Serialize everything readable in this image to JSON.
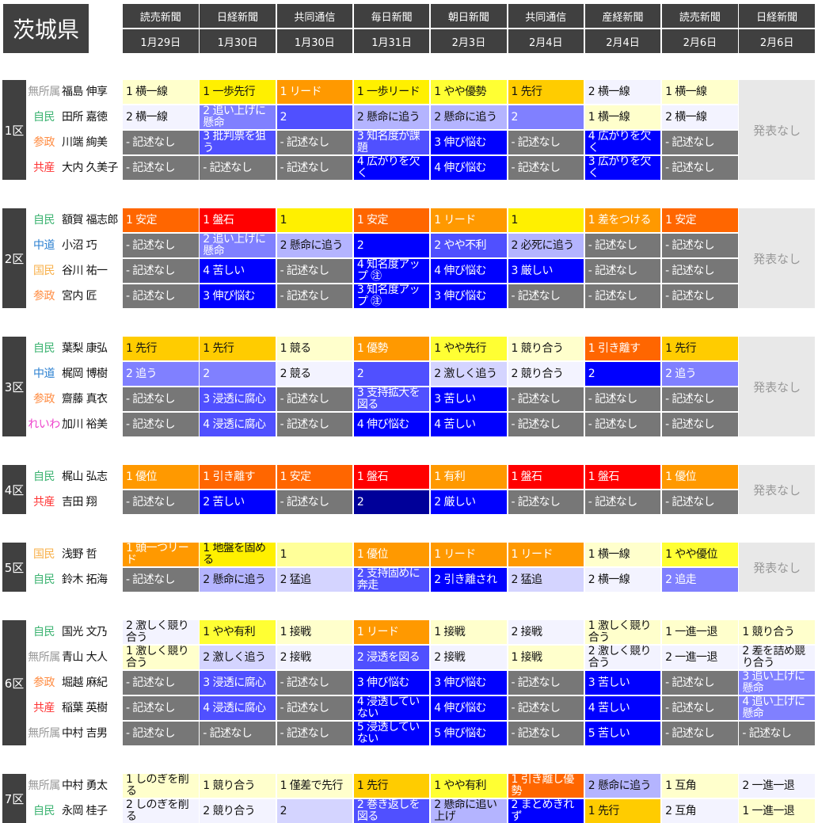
{
  "prefecture": "茨城県",
  "columns": [
    {
      "outlet": "読売新聞",
      "date": "1月29日"
    },
    {
      "outlet": "日経新聞",
      "date": "1月30日"
    },
    {
      "outlet": "共同通信",
      "date": "1月30日"
    },
    {
      "outlet": "毎日新聞",
      "date": "1月31日"
    },
    {
      "outlet": "朝日新聞",
      "date": "2月3日"
    },
    {
      "outlet": "共同通信",
      "date": "2月4日"
    },
    {
      "outlet": "産経新聞",
      "date": "2月4日"
    },
    {
      "outlet": "読売新聞",
      "date": "2月6日"
    },
    {
      "outlet": "日経新聞",
      "date": "2月6日"
    }
  ],
  "not_announced_label": "発表なし",
  "party_colors": {
    "無所属": "#999999",
    "自民": "#3cb371",
    "参政": "#ff8c42",
    "共産": "#ff3333",
    "中道": "#2a7fd0",
    "国民": "#f8b04a",
    "れいわ": "#ee44cc"
  },
  "palette": {
    "Y1": "#ffffcc",
    "Y2": "#ffff99",
    "Y3": "#ffff33",
    "Y4": "#fff000",
    "G": "#ffcc00",
    "O": "#ff9900",
    "OR": "#ff6600",
    "R": "#ff0000",
    "B0": "#f3f3ff",
    "B1": "#d4d4ff",
    "B2": "#b4b4ff",
    "B3": "#8080ff",
    "B4": "#5050ff",
    "B5": "#0000ff",
    "B6": "#000099",
    "N": "#777777"
  },
  "districts": [
    {
      "label": "1区",
      "not_announced": true,
      "rows": [
        {
          "party": "無所属",
          "name": "福島 伸享",
          "cells": [
            [
              "1 横一線",
              "Y1"
            ],
            [
              "1 一歩先行",
              "Y4"
            ],
            [
              "1 リード",
              "O"
            ],
            [
              "1 一歩リード",
              "Y4"
            ],
            [
              "1 やや優勢",
              "Y3"
            ],
            [
              "1 先行",
              "G"
            ],
            [
              "2 横一線",
              "B0"
            ],
            [
              "1 横一線",
              "Y1"
            ]
          ]
        },
        {
          "party": "自民",
          "name": "田所 嘉徳",
          "cells": [
            [
              "2 横一線",
              "B0"
            ],
            [
              "2 追い上げに懸命",
              "B3"
            ],
            [
              "2",
              "B4"
            ],
            [
              "2 懸命に追う",
              "B2"
            ],
            [
              "2 懸命に追う",
              "B2"
            ],
            [
              "2",
              "B3"
            ],
            [
              "1 横一線",
              "Y1"
            ],
            [
              "2 横一線",
              "B0"
            ]
          ]
        },
        {
          "party": "参政",
          "name": "川端 絢美",
          "cells": [
            [
              "- 記述なし",
              "N"
            ],
            [
              "3 批判票を狙う",
              "B4"
            ],
            [
              "- 記述なし",
              "N"
            ],
            [
              "3 知名度が課題",
              "B4"
            ],
            [
              "3 伸び悩む",
              "B5"
            ],
            [
              "- 記述なし",
              "N"
            ],
            [
              "4 広がりを欠く",
              "B5"
            ],
            [
              "- 記述なし",
              "N"
            ]
          ]
        },
        {
          "party": "共産",
          "name": "大内 久美子",
          "cells": [
            [
              "- 記述なし",
              "N"
            ],
            [
              "- 記述なし",
              "N"
            ],
            [
              "- 記述なし",
              "N"
            ],
            [
              "4 広がりを欠く",
              "B5"
            ],
            [
              "4 伸び悩む",
              "B5"
            ],
            [
              "- 記述なし",
              "N"
            ],
            [
              "3 広がりを欠く",
              "B5"
            ],
            [
              "- 記述なし",
              "N"
            ]
          ]
        }
      ]
    },
    {
      "label": "2区",
      "not_announced": true,
      "rows": [
        {
          "party": "自民",
          "name": "額賀 福志郎",
          "cells": [
            [
              "1 安定",
              "OR"
            ],
            [
              "1 盤石",
              "R"
            ],
            [
              "1",
              "Y4"
            ],
            [
              "1 安定",
              "OR"
            ],
            [
              "1 リード",
              "O"
            ],
            [
              "1",
              "Y4"
            ],
            [
              "1 差をつける",
              "O"
            ],
            [
              "1 安定",
              "OR"
            ]
          ]
        },
        {
          "party": "中道",
          "name": "小沼 巧",
          "cells": [
            [
              "- 記述なし",
              "N"
            ],
            [
              "2 追い上げに懸命",
              "B3"
            ],
            [
              "2 懸命に追う",
              "B2"
            ],
            [
              "2",
              "B5"
            ],
            [
              "2 やや不利",
              "B4"
            ],
            [
              "2 必死に追う",
              "B2"
            ],
            [
              "- 記述なし",
              "N"
            ],
            [
              "- 記述なし",
              "N"
            ]
          ]
        },
        {
          "party": "国民",
          "name": "谷川 祐一",
          "cells": [
            [
              "- 記述なし",
              "N"
            ],
            [
              "4 苦しい",
              "B5"
            ],
            [
              "- 記述なし",
              "N"
            ],
            [
              "4 知名度アップ ㊟",
              "B5"
            ],
            [
              "4 伸び悩む",
              "B5"
            ],
            [
              "3 厳しい",
              "B5"
            ],
            [
              "- 記述なし",
              "N"
            ],
            [
              "- 記述なし",
              "N"
            ]
          ]
        },
        {
          "party": "参政",
          "name": "宮内 匠",
          "cells": [
            [
              "- 記述なし",
              "N"
            ],
            [
              "3 伸び悩む",
              "B5"
            ],
            [
              "- 記述なし",
              "N"
            ],
            [
              "3 知名度アップ ㊟",
              "B5"
            ],
            [
              "3 伸び悩む",
              "B5"
            ],
            [
              "- 記述なし",
              "N"
            ],
            [
              "- 記述なし",
              "N"
            ],
            [
              "- 記述なし",
              "N"
            ]
          ]
        }
      ]
    },
    {
      "label": "3区",
      "not_announced": true,
      "rows": [
        {
          "party": "自民",
          "name": "葉梨 康弘",
          "cells": [
            [
              "1 先行",
              "G"
            ],
            [
              "1 先行",
              "G"
            ],
            [
              "1 競る",
              "Y1"
            ],
            [
              "1 優勢",
              "O"
            ],
            [
              "1 やや先行",
              "Y3"
            ],
            [
              "1 競り合う",
              "Y1"
            ],
            [
              "1 引き離す",
              "OR"
            ],
            [
              "1 先行",
              "G"
            ]
          ]
        },
        {
          "party": "中道",
          "name": "梶岡 博樹",
          "cells": [
            [
              "2 追う",
              "B3"
            ],
            [
              "2",
              "B3"
            ],
            [
              "2 競る",
              "B0"
            ],
            [
              "2",
              "B4"
            ],
            [
              "2 激しく追う",
              "B1"
            ],
            [
              "2 競り合う",
              "B0"
            ],
            [
              "2",
              "B5"
            ],
            [
              "2 追う",
              "B3"
            ]
          ]
        },
        {
          "party": "参政",
          "name": "齋藤 真衣",
          "cells": [
            [
              "- 記述なし",
              "N"
            ],
            [
              "3 浸透に腐心",
              "B4"
            ],
            [
              "- 記述なし",
              "N"
            ],
            [
              "3 支持拡大を図る",
              "B4"
            ],
            [
              "3 苦しい",
              "B5"
            ],
            [
              "- 記述なし",
              "N"
            ],
            [
              "- 記述なし",
              "N"
            ],
            [
              "- 記述なし",
              "N"
            ]
          ]
        },
        {
          "party": "れいわ",
          "name": "加川 裕美",
          "cells": [
            [
              "- 記述なし",
              "N"
            ],
            [
              "4 浸透に腐心",
              "B4"
            ],
            [
              "- 記述なし",
              "N"
            ],
            [
              "4 伸び悩む",
              "B5"
            ],
            [
              "4 苦しい",
              "B5"
            ],
            [
              "- 記述なし",
              "N"
            ],
            [
              "- 記述なし",
              "N"
            ],
            [
              "- 記述なし",
              "N"
            ]
          ]
        }
      ]
    },
    {
      "label": "4区",
      "not_announced": true,
      "rows": [
        {
          "party": "自民",
          "name": "梶山 弘志",
          "cells": [
            [
              "1 優位",
              "O"
            ],
            [
              "1 引き離す",
              "OR"
            ],
            [
              "1 安定",
              "OR"
            ],
            [
              "1 盤石",
              "R"
            ],
            [
              "1 有利",
              "O"
            ],
            [
              "1 盤石",
              "R"
            ],
            [
              "1 盤石",
              "R"
            ],
            [
              "1 優位",
              "O"
            ]
          ]
        },
        {
          "party": "共産",
          "name": "吉田 翔",
          "cells": [
            [
              "- 記述なし",
              "N"
            ],
            [
              "2 苦しい",
              "B5"
            ],
            [
              "- 記述なし",
              "N"
            ],
            [
              "2",
              "B6"
            ],
            [
              "2 厳しい",
              "B5"
            ],
            [
              "- 記述なし",
              "N"
            ],
            [
              "- 記述なし",
              "N"
            ],
            [
              "- 記述なし",
              "N"
            ]
          ]
        }
      ]
    },
    {
      "label": "5区",
      "not_announced": true,
      "rows": [
        {
          "party": "国民",
          "name": "浅野 哲",
          "cells": [
            [
              "1 頭一つリード",
              "O"
            ],
            [
              "1 地盤を固める",
              "Y4"
            ],
            [
              "1",
              "Y2"
            ],
            [
              "1 優位",
              "O"
            ],
            [
              "1 リード",
              "O"
            ],
            [
              "1 リード",
              "O"
            ],
            [
              "1 横一線",
              "Y1"
            ],
            [
              "1 やや優位",
              "Y3"
            ]
          ]
        },
        {
          "party": "自民",
          "name": "鈴木 拓海",
          "cells": [
            [
              "- 記述なし",
              "N"
            ],
            [
              "2 懸命に追う",
              "B2"
            ],
            [
              "2 猛追",
              "B1"
            ],
            [
              "2 支持固めに奔走",
              "B4"
            ],
            [
              "2 引き離され",
              "B5"
            ],
            [
              "2 猛追",
              "B1"
            ],
            [
              "2 横一線",
              "B0"
            ],
            [
              "2 追走",
              "B3"
            ]
          ]
        }
      ]
    },
    {
      "label": "6区",
      "not_announced": false,
      "rows": [
        {
          "party": "自民",
          "name": "国光 文乃",
          "cells": [
            [
              "2 激しく競り合う",
              "B0"
            ],
            [
              "1 やや有利",
              "Y3"
            ],
            [
              "1 接戦",
              "Y1"
            ],
            [
              "1 リード",
              "O"
            ],
            [
              "1 接戦",
              "Y1"
            ],
            [
              "2 接戦",
              "B0"
            ],
            [
              "1 激しく競り合う",
              "Y1"
            ],
            [
              "1 一進一退",
              "Y1"
            ],
            [
              "1 競り合う",
              "Y1"
            ]
          ]
        },
        {
          "party": "無所属",
          "name": "青山 大人",
          "cells": [
            [
              "1 激しく競り合う",
              "Y1"
            ],
            [
              "2 激しく追う",
              "B1"
            ],
            [
              "2 接戦",
              "B0"
            ],
            [
              "2 浸透を図る",
              "B4"
            ],
            [
              "2 接戦",
              "B0"
            ],
            [
              "1 接戦",
              "Y1"
            ],
            [
              "2 激しく競り合う",
              "B0"
            ],
            [
              "2 一進一退",
              "B0"
            ],
            [
              "2 差を詰め競り合う",
              "B0"
            ]
          ]
        },
        {
          "party": "参政",
          "name": "堀越 麻紀",
          "cells": [
            [
              "- 記述なし",
              "N"
            ],
            [
              "3 浸透に腐心",
              "B4"
            ],
            [
              "- 記述なし",
              "N"
            ],
            [
              "3 伸び悩む",
              "B5"
            ],
            [
              "3 伸び悩む",
              "B5"
            ],
            [
              "- 記述なし",
              "N"
            ],
            [
              "3 苦しい",
              "B5"
            ],
            [
              "- 記述なし",
              "N"
            ],
            [
              "3 追い上げに懸命",
              "B3"
            ]
          ]
        },
        {
          "party": "共産",
          "name": "稲葉 英樹",
          "cells": [
            [
              "- 記述なし",
              "N"
            ],
            [
              "4 浸透に腐心",
              "B4"
            ],
            [
              "- 記述なし",
              "N"
            ],
            [
              "4 浸透していない",
              "B5"
            ],
            [
              "4 伸び悩む",
              "B5"
            ],
            [
              "- 記述なし",
              "N"
            ],
            [
              "4 苦しい",
              "B5"
            ],
            [
              "- 記述なし",
              "N"
            ],
            [
              "4 追い上げに懸命",
              "B3"
            ]
          ]
        },
        {
          "party": "無所属",
          "name": "中村 吉男",
          "cells": [
            [
              "- 記述なし",
              "N"
            ],
            [
              "- 記述なし",
              "N"
            ],
            [
              "- 記述なし",
              "N"
            ],
            [
              "5 浸透していない",
              "B5"
            ],
            [
              "5 伸び悩む",
              "B5"
            ],
            [
              "- 記述なし",
              "N"
            ],
            [
              "5 苦しい",
              "B5"
            ],
            [
              "- 記述なし",
              "N"
            ],
            [
              "- 記述なし",
              "N"
            ]
          ]
        }
      ]
    },
    {
      "label": "7区",
      "not_announced": false,
      "rows": [
        {
          "party": "無所属",
          "name": "中村 勇太",
          "cells": [
            [
              "1 しのぎを削る",
              "Y1"
            ],
            [
              "1 競り合う",
              "Y1"
            ],
            [
              "1 僅差で先行",
              "Y1"
            ],
            [
              "1 先行",
              "G"
            ],
            [
              "1 やや有利",
              "Y3"
            ],
            [
              "1 引き離し優勢",
              "OR"
            ],
            [
              "2 懸命に追う",
              "B2"
            ],
            [
              "1 互角",
              "Y1"
            ],
            [
              "2 一進一退",
              "B0"
            ]
          ]
        },
        {
          "party": "自民",
          "name": "永岡 桂子",
          "cells": [
            [
              "2 しのぎを削る",
              "B0"
            ],
            [
              "2 競り合う",
              "B0"
            ],
            [
              "2",
              "B1"
            ],
            [
              "2 巻き返しを図る",
              "B4"
            ],
            [
              "2 懸命に追い上げ",
              "B2"
            ],
            [
              "2 まとめきれず",
              "B5"
            ],
            [
              "1 先行",
              "G"
            ],
            [
              "2 互角",
              "B0"
            ],
            [
              "1 一進一退",
              "Y1"
            ]
          ]
        }
      ]
    }
  ]
}
